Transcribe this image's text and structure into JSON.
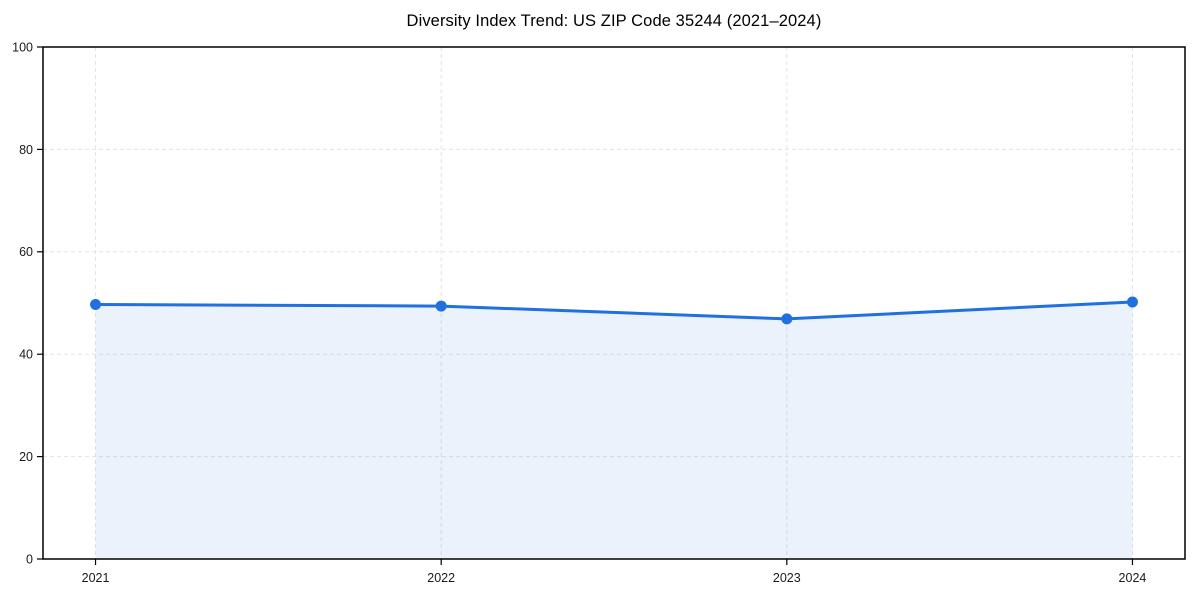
{
  "chart_data": {
    "type": "line",
    "title": "Diversity Index Trend: US ZIP Code 35244 (2021–2024)",
    "x": [
      "2021",
      "2022",
      "2023",
      "2024"
    ],
    "series": [
      {
        "name": "Diversity Index",
        "values": [
          49.7,
          49.4,
          46.9,
          50.2
        ]
      }
    ],
    "xlabel": "",
    "ylabel": "",
    "ylim": [
      0,
      100
    ],
    "yticks": [
      0,
      20,
      40,
      60,
      80,
      100
    ],
    "grid": "dashed-both-axes",
    "legend": "none",
    "marker": "circle",
    "area_fill": true,
    "colors": {
      "line": "#2170e0",
      "marker": "#2170e0",
      "fill": "rgba(33, 112, 224, 0.09)",
      "grid": "#e3e3e3",
      "spine": "#000000",
      "tick_text": "#1a1a1a",
      "background": "#ffffff"
    }
  }
}
